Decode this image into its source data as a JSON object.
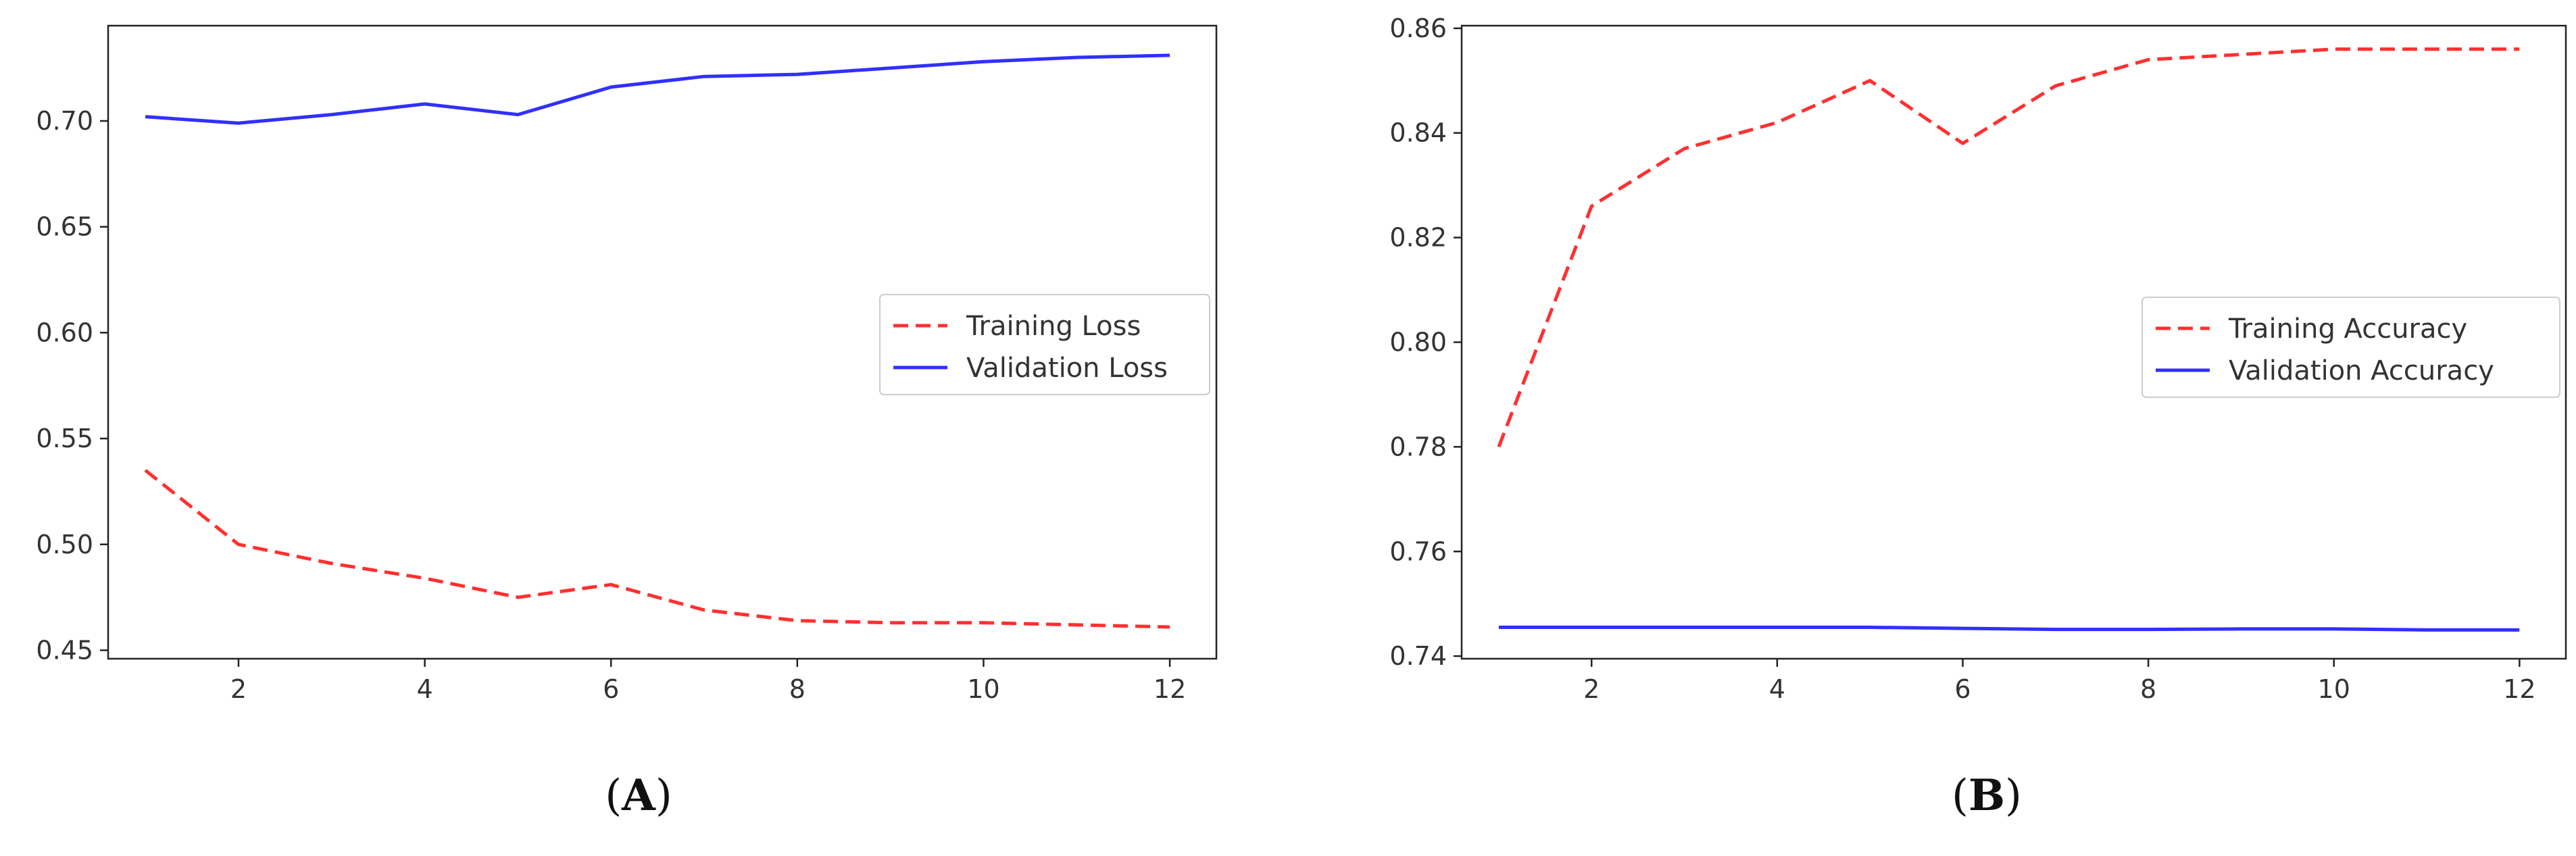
{
  "chart_data": [
    {
      "type": "line",
      "panel_label": "A",
      "title": "",
      "xlabel": "",
      "ylabel": "",
      "x": [
        1,
        2,
        3,
        4,
        5,
        6,
        7,
        8,
        9,
        10,
        11,
        12
      ],
      "xlim": [
        0.6,
        12.5
      ],
      "ylim": [
        0.446,
        0.745
      ],
      "xticks": [
        2,
        4,
        6,
        8,
        10,
        12
      ],
      "yticks": [
        0.45,
        0.5,
        0.55,
        0.6,
        0.65,
        0.7
      ],
      "ytick_labels": [
        "0.45",
        "0.50",
        "0.55",
        "0.60",
        "0.65",
        "0.70"
      ],
      "legend_position": "center-right",
      "series": [
        {
          "name": "Training Loss",
          "style": "dashed",
          "color": "#ff3030",
          "values": [
            0.535,
            0.5,
            0.491,
            0.484,
            0.475,
            0.481,
            0.469,
            0.464,
            0.463,
            0.463,
            0.462,
            0.461
          ]
        },
        {
          "name": "Validation Loss",
          "style": "solid",
          "color": "#3030ff",
          "values": [
            0.702,
            0.699,
            0.703,
            0.708,
            0.703,
            0.716,
            0.721,
            0.722,
            0.725,
            0.728,
            0.73,
            0.731
          ]
        }
      ]
    },
    {
      "type": "line",
      "panel_label": "B",
      "title": "",
      "xlabel": "",
      "ylabel": "",
      "x": [
        1,
        2,
        3,
        4,
        5,
        6,
        7,
        8,
        9,
        10,
        11,
        12
      ],
      "xlim": [
        0.6,
        12.5
      ],
      "ylim": [
        0.7395,
        0.8605
      ],
      "xticks": [
        2,
        4,
        6,
        8,
        10,
        12
      ],
      "yticks": [
        0.74,
        0.76,
        0.78,
        0.8,
        0.82,
        0.84,
        0.86
      ],
      "ytick_labels": [
        "0.74",
        "0.76",
        "0.78",
        "0.80",
        "0.82",
        "0.84",
        "0.86"
      ],
      "legend_position": "center-right",
      "series": [
        {
          "name": "Training Accuracy",
          "style": "dashed",
          "color": "#ff3030",
          "values": [
            0.78,
            0.826,
            0.837,
            0.842,
            0.85,
            0.838,
            0.849,
            0.854,
            0.855,
            0.856,
            0.856,
            0.856
          ]
        },
        {
          "name": "Validation Accuracy",
          "style": "solid",
          "color": "#3030ff",
          "values": [
            0.7455,
            0.7455,
            0.7455,
            0.7455,
            0.7455,
            0.7453,
            0.7451,
            0.7451,
            0.7452,
            0.7452,
            0.745,
            0.745
          ]
        }
      ]
    }
  ]
}
